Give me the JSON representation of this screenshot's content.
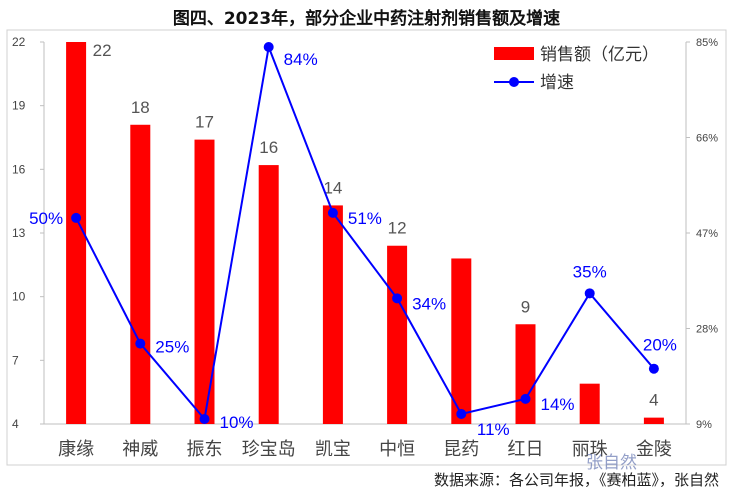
{
  "chart_data": {
    "type": "bar+line",
    "title": "图四、2023年，部分企业中药注射剂销售额及增速",
    "categories": [
      "康缘",
      "神威",
      "振东",
      "珍宝岛",
      "凯宝",
      "中恒",
      "昆药",
      "红日",
      "丽珠",
      "金陵"
    ],
    "series": [
      {
        "name": "销售额（亿元）",
        "type": "bar",
        "axis": "left",
        "color": "#ff0000",
        "values": [
          22,
          18.1,
          17.4,
          16.2,
          14.3,
          12.4,
          11.8,
          8.7,
          5.9,
          4.3
        ],
        "labels": [
          "22",
          "18",
          "17",
          "16",
          "14",
          "12",
          "",
          "9",
          "",
          "4"
        ]
      },
      {
        "name": "增速",
        "type": "line",
        "axis": "right",
        "color": "#0000ff",
        "values": [
          50,
          25,
          10,
          84,
          51,
          34,
          11,
          14,
          35,
          20
        ],
        "labels": [
          "50%",
          "25%",
          "10%",
          "84%",
          "51%",
          "34%",
          "11%",
          "14%",
          "35%",
          "20%"
        ]
      }
    ],
    "left_axis": {
      "ylim": [
        4,
        22
      ],
      "ticks": [
        "4",
        "7",
        "10",
        "13",
        "16",
        "19",
        "22"
      ]
    },
    "right_axis": {
      "ylim": [
        9,
        85
      ],
      "ticks": [
        "9%",
        "28%",
        "47%",
        "66%",
        "85%"
      ]
    },
    "legend": "top-right",
    "grid": false
  },
  "source_note": "数据来源：各公司年报，《赛柏蓝》，张自然",
  "watermark": "张自然"
}
